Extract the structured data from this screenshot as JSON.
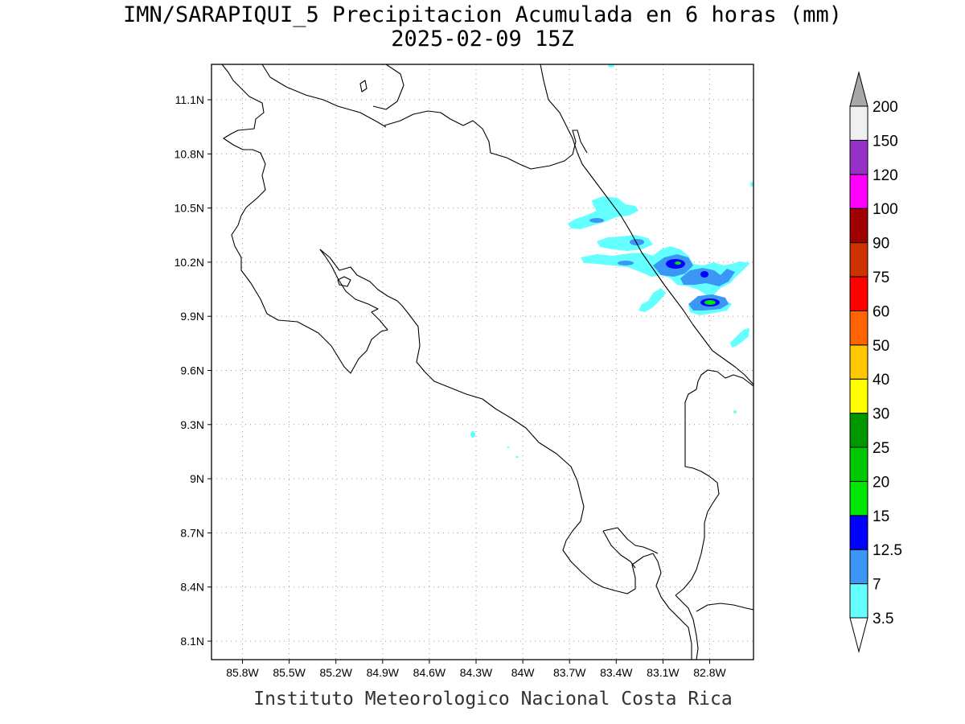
{
  "header": {
    "title_line1": "IMN/SARAPIQUI_5 Precipitacion Acumulada en 6 horas (mm)",
    "title_line2": "2025-02-09 15Z"
  },
  "footer": {
    "credit": "Instituto Meteorologico Nacional Costa Rica"
  },
  "map": {
    "lat_ticks": [
      "11.1N",
      "10.8N",
      "10.5N",
      "10.2N",
      "9.9N",
      "9.6N",
      "9.3N",
      "9N",
      "8.7N",
      "8.4N",
      "8.1N"
    ],
    "lon_ticks": [
      "85.8W",
      "85.5W",
      "85.2W",
      "84.9W",
      "84.6W",
      "84.3W",
      "84W",
      "83.7W",
      "83.4W",
      "83.1W",
      "82.8W"
    ],
    "grid": "dotted",
    "coastline_color": "#000000"
  },
  "legend": {
    "units": "mm",
    "top_arrow_color": "#a8a8a8",
    "bottom_arrow_color": "#ffffff",
    "levels": [
      {
        "label": "3.5",
        "color": "#64ffff"
      },
      {
        "label": "7",
        "color": "#3c96f5"
      },
      {
        "label": "12.5",
        "color": "#0000ff"
      },
      {
        "label": "15",
        "color": "#00e600"
      },
      {
        "label": "20",
        "color": "#00c800"
      },
      {
        "label": "25",
        "color": "#009600"
      },
      {
        "label": "30",
        "color": "#ffff00"
      },
      {
        "label": "40",
        "color": "#ffc800"
      },
      {
        "label": "50",
        "color": "#ff6400"
      },
      {
        "label": "60",
        "color": "#ff0000"
      },
      {
        "label": "75",
        "color": "#cd3200"
      },
      {
        "label": "90",
        "color": "#a00000"
      },
      {
        "label": "100",
        "color": "#ff00ff"
      },
      {
        "label": "120",
        "color": "#9632c8"
      },
      {
        "label": "150",
        "color": "#f0f0f0"
      },
      {
        "label": "200",
        "color": ""
      }
    ]
  }
}
